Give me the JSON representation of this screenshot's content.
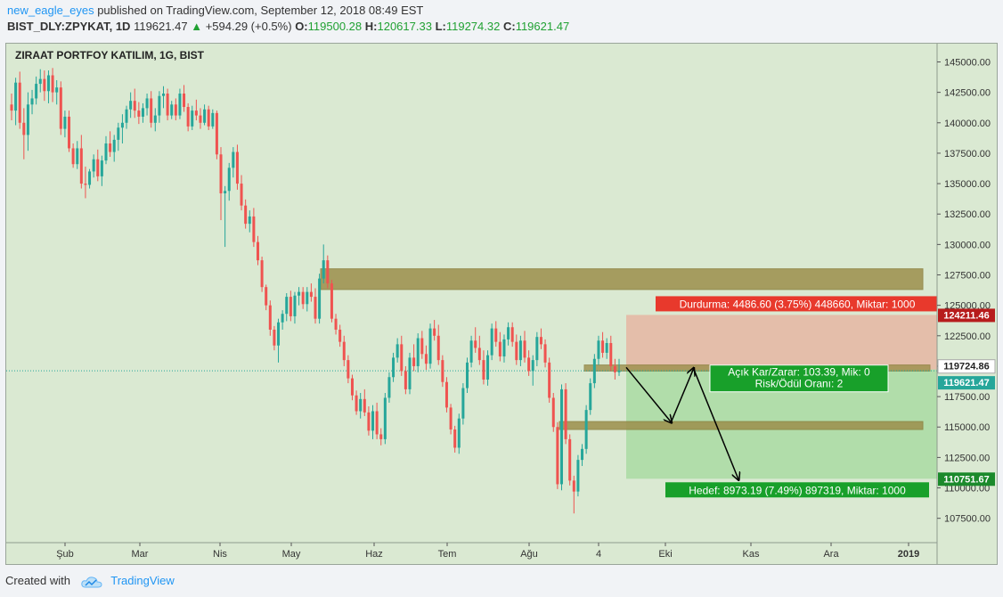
{
  "header": {
    "user": "new_eagle_eyes",
    "published": " published on TradingView.com, September 12, 2018 08:49 EST",
    "symbol": "BIST_DLY:ZPYKAT, 1D",
    "last": "119621.47",
    "change": "+594.29 (+0.5%)",
    "o_label": "O:",
    "o_val": "119500.28",
    "h_label": "H:",
    "h_val": "120617.33",
    "l_label": "L:",
    "l_val": "119274.32",
    "c_label": "C:",
    "c_val": "119621.47"
  },
  "footer": {
    "created": "Created with",
    "brand": "TradingView"
  },
  "colors": {
    "bg": "#dae9d2",
    "up": "#26a69a",
    "down": "#ef5350",
    "zone": "#9c8f4b",
    "stop": "#e8392c",
    "target": "#18a02a",
    "price": "#b71c1c"
  },
  "chart_data": {
    "type": "candlestick",
    "title": "ZIRAAT PORTFOY KATILIM, 1G, BIST",
    "y_ticks": [
      "145000.00",
      "142500.00",
      "140000.00",
      "137500.00",
      "135000.00",
      "132500.00",
      "130000.00",
      "127500.00",
      "125000.00",
      "122500.00",
      "120000.00",
      "117500.00",
      "115000.00",
      "112500.00",
      "110000.00",
      "107500.00"
    ],
    "x_ticks": [
      "Şub",
      "Mar",
      "Nis",
      "May",
      "Haz",
      "Tem",
      "Ağu",
      "4",
      "Eki",
      "Kas",
      "Ara",
      "2019"
    ],
    "ylim": [
      105500,
      146500
    ],
    "price_labels": [
      {
        "text": "124211.46",
        "value": 124211.46,
        "kind": "stop"
      },
      {
        "text": "119724.86",
        "value": 119724.86,
        "kind": "entry"
      },
      {
        "text": "119621.47",
        "value": 119621.47,
        "kind": "last"
      },
      {
        "text": "110751.67",
        "value": 110751.67,
        "kind": "target"
      }
    ],
    "stop_label": "Durdurma: 4486.60 (3.75%) 448660, Miktar: 1000",
    "target_label": "Hedef: 8973.19 (7.49%) 897319, Miktar: 1000",
    "pnl_label_1": "Açık Kar/Zarar: 103.39, Mik: 0",
    "pnl_label_2": "Risk/Ödül Oranı: 2",
    "resistance_zone": [
      126300,
      128000
    ],
    "support_zone": [
      114800,
      115450
    ],
    "entry_zone": [
      119600,
      120100
    ],
    "path_points": [
      [
        0,
        119900
      ],
      [
        0.4,
        115400
      ],
      [
        0.6,
        119800
      ],
      [
        1.0,
        110700
      ]
    ],
    "ohlc": [
      [
        141500,
        142400,
        140200,
        141000
      ],
      [
        141000,
        143700,
        139800,
        143300
      ],
      [
        143300,
        144200,
        139500,
        140000
      ],
      [
        140000,
        141200,
        137000,
        139000
      ],
      [
        139000,
        142500,
        137700,
        141500
      ],
      [
        141500,
        142700,
        140700,
        142000
      ],
      [
        142000,
        143800,
        141500,
        143200
      ],
      [
        143200,
        144400,
        142500,
        143600
      ],
      [
        143600,
        144300,
        141800,
        142600
      ],
      [
        142600,
        144300,
        141600,
        143900
      ],
      [
        143900,
        144500,
        141700,
        142500
      ],
      [
        142500,
        143500,
        141500,
        142900
      ],
      [
        142900,
        143400,
        139000,
        139500
      ],
      [
        139500,
        141000,
        138800,
        140500
      ],
      [
        140500,
        141000,
        137600,
        137900
      ],
      [
        137900,
        138300,
        136300,
        136600
      ],
      [
        136600,
        138500,
        136200,
        137900
      ],
      [
        137900,
        139000,
        134600,
        135000
      ],
      [
        135000,
        136400,
        133800,
        134900
      ],
      [
        134900,
        136200,
        134600,
        136000
      ],
      [
        136000,
        137400,
        135500,
        137000
      ],
      [
        137000,
        137800,
        135200,
        135600
      ],
      [
        135600,
        137300,
        134800,
        136900
      ],
      [
        136900,
        138900,
        136600,
        138300
      ],
      [
        138300,
        139300,
        137200,
        137600
      ],
      [
        137600,
        139000,
        136800,
        138600
      ],
      [
        138600,
        140000,
        137700,
        139600
      ],
      [
        139600,
        140700,
        138300,
        140000
      ],
      [
        140000,
        141400,
        139500,
        141100
      ],
      [
        141100,
        142500,
        140400,
        141800
      ],
      [
        141800,
        142800,
        140400,
        141000
      ],
      [
        141000,
        141700,
        139900,
        140500
      ],
      [
        140500,
        141600,
        140000,
        141200
      ],
      [
        141200,
        142400,
        140600,
        142000
      ],
      [
        142000,
        142600,
        139600,
        140000
      ],
      [
        140000,
        141200,
        139300,
        140600
      ],
      [
        140600,
        142600,
        140000,
        142200
      ],
      [
        142200,
        143000,
        141200,
        142400
      ],
      [
        142400,
        142800,
        140200,
        140600
      ],
      [
        140600,
        141800,
        140300,
        141500
      ],
      [
        141500,
        142000,
        140200,
        140600
      ],
      [
        140600,
        142800,
        140300,
        142400
      ],
      [
        142400,
        143100,
        140900,
        141300
      ],
      [
        141300,
        141600,
        139300,
        139700
      ],
      [
        139700,
        141400,
        139400,
        141000
      ],
      [
        141000,
        141900,
        140200,
        140600
      ],
      [
        140600,
        141200,
        139500,
        140000
      ],
      [
        140000,
        141500,
        139800,
        141100
      ],
      [
        141100,
        141400,
        139400,
        139700
      ],
      [
        139700,
        141100,
        139500,
        140800
      ],
      [
        140800,
        141000,
        137000,
        137400
      ],
      [
        137400,
        138000,
        132000,
        134200
      ],
      [
        134200,
        134800,
        129800,
        134400
      ],
      [
        134400,
        136700,
        133600,
        136300
      ],
      [
        136300,
        138000,
        135500,
        137600
      ],
      [
        137600,
        138200,
        134500,
        135000
      ],
      [
        135000,
        135700,
        132800,
        133200
      ],
      [
        133200,
        133700,
        131300,
        131700
      ],
      [
        131700,
        132800,
        131000,
        132300
      ],
      [
        132300,
        133000,
        129800,
        130200
      ],
      [
        130200,
        130700,
        128300,
        128700
      ],
      [
        128700,
        129000,
        126100,
        126500
      ],
      [
        126500,
        126700,
        124600,
        125000
      ],
      [
        125000,
        125400,
        122500,
        123000
      ],
      [
        123000,
        123300,
        121300,
        121700
      ],
      [
        121700,
        123900,
        120300,
        123600
      ],
      [
        123600,
        124600,
        123000,
        124300
      ],
      [
        124300,
        126000,
        123700,
        125700
      ],
      [
        125700,
        126200,
        123700,
        124100
      ],
      [
        124100,
        126100,
        123500,
        125800
      ],
      [
        125800,
        126500,
        125000,
        126100
      ],
      [
        126100,
        126500,
        124700,
        125100
      ],
      [
        125100,
        126500,
        124500,
        126100
      ],
      [
        126100,
        126800,
        125300,
        125700
      ],
      [
        125700,
        126400,
        123500,
        123900
      ],
      [
        123900,
        127600,
        123500,
        127200
      ],
      [
        127200,
        130000,
        126800,
        128700
      ],
      [
        128700,
        129100,
        126400,
        126800
      ],
      [
        126800,
        127100,
        123600,
        123900
      ],
      [
        123900,
        124300,
        122600,
        123000
      ],
      [
        123000,
        123400,
        121600,
        122000
      ],
      [
        122000,
        122500,
        120000,
        120500
      ],
      [
        120500,
        120900,
        118600,
        119000
      ],
      [
        119000,
        119300,
        117200,
        117600
      ],
      [
        117600,
        118000,
        116000,
        116300
      ],
      [
        116300,
        117800,
        115700,
        117300
      ],
      [
        117300,
        118100,
        115900,
        116200
      ],
      [
        116200,
        116700,
        114300,
        114700
      ],
      [
        114700,
        116800,
        114000,
        116300
      ],
      [
        116300,
        117000,
        114000,
        114400
      ],
      [
        114400,
        114900,
        113500,
        114000
      ],
      [
        114000,
        117800,
        113600,
        117400
      ],
      [
        117400,
        119500,
        117000,
        119100
      ],
      [
        119100,
        121100,
        118700,
        120700
      ],
      [
        120700,
        122300,
        120300,
        121800
      ],
      [
        121800,
        122500,
        119200,
        119600
      ],
      [
        119600,
        120000,
        117700,
        118100
      ],
      [
        118100,
        121100,
        117700,
        120700
      ],
      [
        120700,
        121800,
        119600,
        120000
      ],
      [
        120000,
        122700,
        119500,
        122300
      ],
      [
        122300,
        122900,
        120600,
        121000
      ],
      [
        121000,
        121700,
        119700,
        120200
      ],
      [
        120200,
        123500,
        119800,
        123100
      ],
      [
        123100,
        123800,
        122100,
        122500
      ],
      [
        122500,
        123400,
        120100,
        120500
      ],
      [
        120500,
        120900,
        118300,
        118700
      ],
      [
        118700,
        119100,
        116200,
        116600
      ],
      [
        116600,
        116900,
        114400,
        114800
      ],
      [
        114800,
        115100,
        112900,
        113300
      ],
      [
        113300,
        116100,
        112800,
        115700
      ],
      [
        115700,
        118600,
        115200,
        118200
      ],
      [
        118200,
        120700,
        117800,
        120300
      ],
      [
        120300,
        122500,
        119900,
        122100
      ],
      [
        122100,
        123200,
        121100,
        121500
      ],
      [
        121500,
        122500,
        120100,
        120500
      ],
      [
        120500,
        121300,
        118500,
        118900
      ],
      [
        118900,
        121300,
        118400,
        120900
      ],
      [
        120900,
        123500,
        120500,
        123100
      ],
      [
        123100,
        123700,
        121600,
        122000
      ],
      [
        122000,
        122800,
        120400,
        120800
      ],
      [
        120800,
        122600,
        120300,
        122200
      ],
      [
        122200,
        123600,
        121700,
        123200
      ],
      [
        123200,
        123600,
        121600,
        122000
      ],
      [
        122000,
        122600,
        120100,
        120500
      ],
      [
        120500,
        122500,
        120000,
        122100
      ],
      [
        122100,
        122900,
        120300,
        120700
      ],
      [
        120700,
        121300,
        119200,
        119600
      ],
      [
        119600,
        120900,
        118400,
        120500
      ],
      [
        120500,
        122800,
        120000,
        122400
      ],
      [
        122400,
        123100,
        121400,
        121800
      ],
      [
        121800,
        122200,
        119900,
        120300
      ],
      [
        120300,
        120700,
        117000,
        117400
      ],
      [
        117400,
        117800,
        114600,
        115000
      ],
      [
        115000,
        115400,
        109900,
        110300
      ],
      [
        110300,
        118500,
        109800,
        118100
      ],
      [
        118100,
        118600,
        113600,
        114000
      ],
      [
        114000,
        114400,
        110200,
        110600
      ],
      [
        110600,
        111000,
        107900,
        109700
      ],
      [
        109700,
        112700,
        109300,
        112300
      ],
      [
        112300,
        113600,
        111800,
        113200
      ],
      [
        113200,
        116800,
        112800,
        116400
      ],
      [
        116400,
        119000,
        116000,
        118600
      ],
      [
        118600,
        121000,
        118200,
        120600
      ],
      [
        120600,
        122500,
        120100,
        122100
      ],
      [
        122100,
        122800,
        120700,
        121100
      ],
      [
        121100,
        122300,
        120600,
        121900
      ],
      [
        121900,
        122500,
        119600,
        120000
      ],
      [
        120000,
        120600,
        118900,
        119500
      ],
      [
        119500,
        120600,
        119200,
        119621
      ]
    ]
  }
}
